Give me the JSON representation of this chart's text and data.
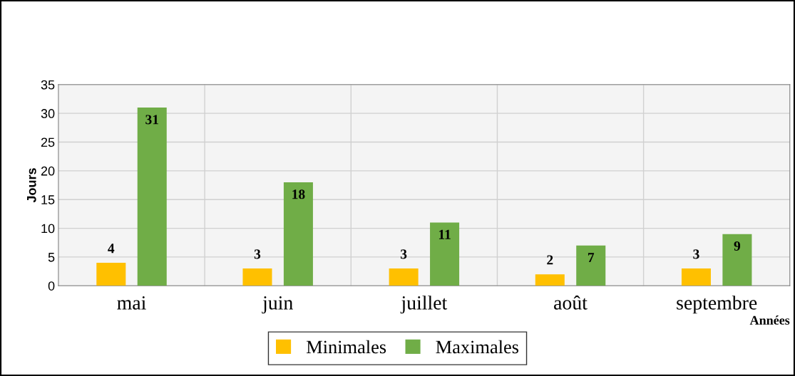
{
  "chart_data": {
    "type": "bar",
    "xlabel": "Années",
    "ylabel": "Jours",
    "categories": [
      "mai",
      "juin",
      "juillet",
      "août",
      "septembre"
    ],
    "series": [
      {
        "name": "Minimales",
        "color": "#ffc000",
        "values": [
          4,
          3,
          3,
          2,
          3
        ]
      },
      {
        "name": "Maximales",
        "color": "#70ad47",
        "values": [
          31,
          18,
          11,
          7,
          9
        ]
      }
    ],
    "ylim": [
      0,
      35
    ],
    "yticks": [
      0,
      5,
      10,
      15,
      20,
      25,
      30,
      35
    ],
    "grid": true,
    "legend": "bottom",
    "data_labels": true
  }
}
